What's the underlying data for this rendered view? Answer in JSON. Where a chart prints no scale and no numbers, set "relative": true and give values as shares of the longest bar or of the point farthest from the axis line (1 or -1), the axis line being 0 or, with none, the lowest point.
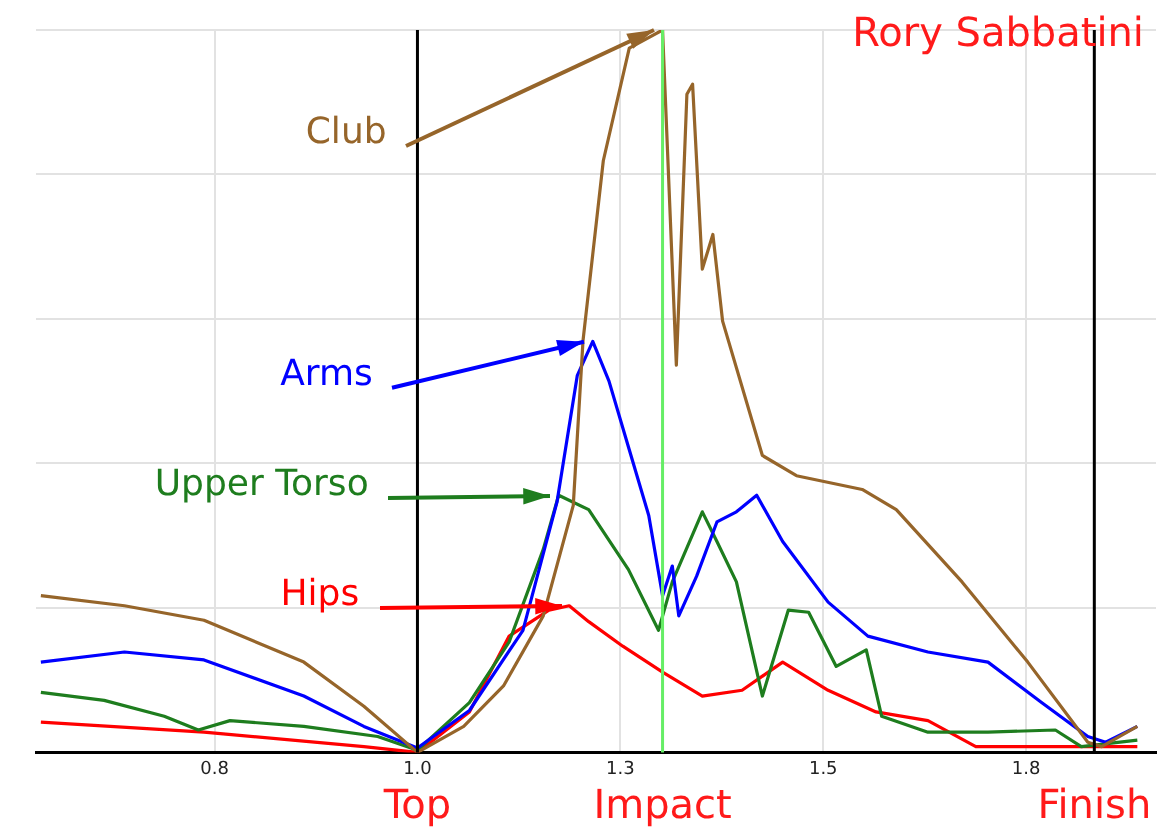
{
  "chart_data": {
    "type": "line",
    "title": "Rory Sabbatini",
    "relative": true,
    "grid": true,
    "marker": "none",
    "line_style": "solid",
    "tick_labels": "x",
    "xlim": [
      0.53,
      1.91
    ],
    "xticks": [
      {
        "value": 0.75,
        "label": "0.8"
      },
      {
        "value": 1.0,
        "label": "1.0"
      },
      {
        "value": 1.25,
        "label": "1.3"
      },
      {
        "value": 1.5,
        "label": "1.5"
      },
      {
        "value": 1.75,
        "label": "1.8"
      }
    ],
    "ref_lines": [
      {
        "axis": "x",
        "value": 1.0,
        "label": "Top",
        "color": "#000000"
      },
      {
        "axis": "x",
        "value": 1.302,
        "label": "Impact",
        "color": "#66ee66"
      },
      {
        "axis": "x",
        "value": 1.834,
        "label": "Finish",
        "color": "#000000"
      }
    ],
    "series": [
      {
        "name": "Club",
        "color": "#96652a",
        "x": [
          0.536,
          0.639,
          0.737,
          0.86,
          0.934,
          1.0,
          1.057,
          1.106,
          1.155,
          1.192,
          1.204,
          1.229,
          1.261,
          1.302,
          1.319,
          1.332,
          1.339,
          1.351,
          1.364,
          1.376,
          1.425,
          1.467,
          1.548,
          1.59,
          1.671,
          1.752,
          1.826,
          1.843,
          1.887
        ],
        "values": [
          0.217,
          0.203,
          0.183,
          0.125,
          0.064,
          0,
          0.036,
          0.092,
          0.189,
          0.342,
          0.57,
          0.819,
          0.975,
          1.0,
          0.536,
          0.911,
          0.925,
          0.669,
          0.717,
          0.597,
          0.411,
          0.383,
          0.364,
          0.336,
          0.236,
          0.125,
          0.014,
          0.008,
          0.036
        ]
      },
      {
        "name": "Arms",
        "color": "#0000ff",
        "x": [
          0.536,
          0.639,
          0.737,
          0.86,
          0.934,
          1.0,
          1.064,
          1.13,
          1.172,
          1.197,
          1.216,
          1.236,
          1.261,
          1.285,
          1.302,
          1.314,
          1.322,
          1.344,
          1.369,
          1.393,
          1.418,
          1.45,
          1.506,
          1.555,
          1.629,
          1.703,
          1.769,
          1.826,
          1.848,
          1.887
        ],
        "values": [
          0.125,
          0.139,
          0.128,
          0.078,
          0.036,
          0.006,
          0.058,
          0.169,
          0.347,
          0.522,
          0.569,
          0.514,
          0.419,
          0.328,
          0.217,
          0.258,
          0.189,
          0.244,
          0.319,
          0.333,
          0.356,
          0.292,
          0.208,
          0.161,
          0.139,
          0.125,
          0.069,
          0.022,
          0.014,
          0.036
        ]
      },
      {
        "name": "Upper Torso",
        "color": "#1e7d1e",
        "x": [
          0.536,
          0.614,
          0.688,
          0.73,
          0.769,
          0.86,
          0.951,
          1.0,
          1.064,
          1.113,
          1.155,
          1.174,
          1.211,
          1.26,
          1.297,
          1.314,
          1.351,
          1.369,
          1.393,
          1.425,
          1.457,
          1.482,
          1.516,
          1.553,
          1.572,
          1.629,
          1.703,
          1.786,
          1.818,
          1.887
        ],
        "values": [
          0.083,
          0.072,
          0.05,
          0.031,
          0.044,
          0.036,
          0.022,
          0.003,
          0.069,
          0.153,
          0.281,
          0.356,
          0.336,
          0.253,
          0.169,
          0.236,
          0.333,
          0.292,
          0.236,
          0.078,
          0.197,
          0.194,
          0.119,
          0.142,
          0.05,
          0.028,
          0.028,
          0.031,
          0.008,
          0.017
        ]
      },
      {
        "name": "Hips",
        "color": "#ff0000",
        "x": [
          0.536,
          0.737,
          0.934,
          1.0,
          1.064,
          1.113,
          1.162,
          1.187,
          1.211,
          1.253,
          1.302,
          1.351,
          1.4,
          1.45,
          1.506,
          1.565,
          1.629,
          1.688,
          1.887
        ],
        "values": [
          0.042,
          0.028,
          0.008,
          0,
          0.056,
          0.161,
          0.197,
          0.203,
          0.181,
          0.147,
          0.111,
          0.078,
          0.086,
          0.125,
          0.086,
          0.056,
          0.044,
          0.008,
          0.008
        ]
      }
    ]
  }
}
